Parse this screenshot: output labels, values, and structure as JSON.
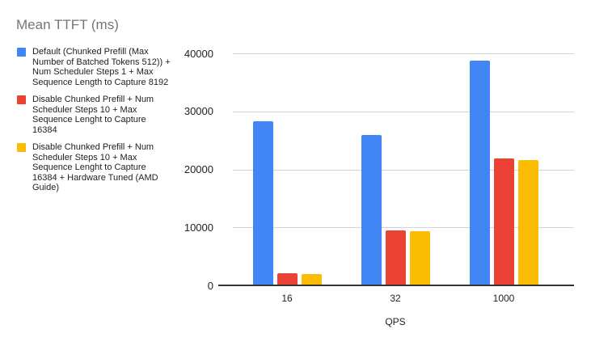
{
  "title": "Mean TTFT (ms)",
  "chart_data": {
    "type": "bar",
    "title": "Mean TTFT (ms)",
    "categories": [
      "16",
      "32",
      "1000"
    ],
    "series": [
      {
        "name": "Default (Chunked Prefill (Max Number of Batched Tokens 512)) + Num Scheduler Steps 1 + Max Sequence Length to Capture 8192",
        "color": "#4285F4",
        "values": [
          28300,
          25900,
          38800
        ]
      },
      {
        "name": "Disable Chunked Prefill + Num Scheduler Steps 10 + Max Sequence Lenght to Capture 16384",
        "color": "#EA4335",
        "values": [
          2100,
          9500,
          21900
        ]
      },
      {
        "name": "Disable Chunked Prefill + Num Scheduler Steps 10 + Max Sequence Lenght to Capture 16384 + Hardware Tuned (AMD Guide)",
        "color": "#FBBC04",
        "values": [
          2000,
          9300,
          21600
        ]
      }
    ],
    "xlabel": "QPS",
    "ylabel": "",
    "ylim": [
      0,
      40000
    ],
    "yticks": [
      0,
      10000,
      20000,
      30000,
      40000
    ],
    "legend_position": "left",
    "grid": true,
    "colors": {
      "title_text": "#757575",
      "axis_line": "#333333",
      "gridline": "#d4d4d4",
      "tick_text": "#222222",
      "legend_text": "#212121",
      "background": "#ffffff"
    }
  }
}
